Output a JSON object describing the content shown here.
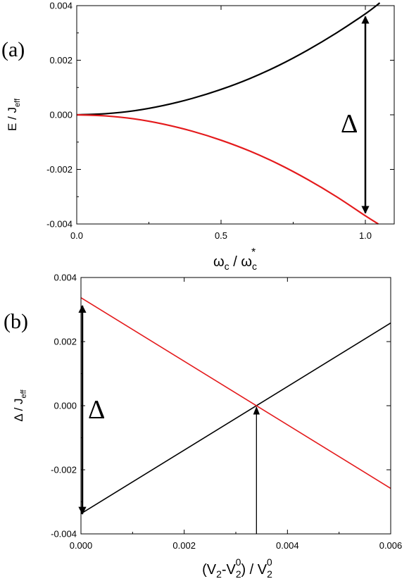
{
  "chart_data": [
    {
      "type": "line",
      "panel_label": "(a)",
      "xlabel": {
        "main": "ω",
        "sub1": "c",
        "mid": " / ω",
        "sub2": "c",
        "sup": "*"
      },
      "ylabel": {
        "main": "E / J",
        "sub": "eff"
      },
      "xlim": [
        0.0,
        1.1
      ],
      "ylim": [
        -0.004,
        0.004
      ],
      "xticks": [
        0.0,
        0.5,
        1.0
      ],
      "xtick_labels": [
        "0.0",
        "0.5",
        "1.0"
      ],
      "yticks": [
        -0.004,
        -0.002,
        0.0,
        0.002,
        0.004
      ],
      "ytick_labels": [
        "-0.004",
        "-0.002",
        "0.000",
        "0.002",
        "0.004"
      ],
      "series": [
        {
          "color": "#000000",
          "x": [
            0.0,
            0.1,
            0.2,
            0.3,
            0.4,
            0.5,
            0.6,
            0.7,
            0.8,
            0.9,
            1.0,
            1.05
          ],
          "y": [
            0.0,
            4e-05,
            0.00015,
            0.00034,
            0.0006,
            0.00093,
            0.00133,
            0.00181,
            0.00237,
            0.003,
            0.0037,
            0.0041
          ]
        },
        {
          "color": "#e41a1c",
          "x": [
            0.0,
            0.1,
            0.2,
            0.3,
            0.4,
            0.5,
            0.6,
            0.7,
            0.8,
            0.9,
            1.0,
            1.045
          ],
          "y": [
            0.0,
            -4e-05,
            -0.00015,
            -0.00034,
            -0.0006,
            -0.00093,
            -0.00133,
            -0.00181,
            -0.00237,
            -0.003,
            -0.0037,
            -0.004
          ]
        }
      ],
      "annotations": [
        {
          "type": "double-arrow",
          "x": 1.0,
          "y_from": 0.0036,
          "y_to": -0.0036,
          "label": "Δ"
        }
      ]
    },
    {
      "type": "line",
      "panel_label": "(b)",
      "xlabel": {
        "open": "(V",
        "sub1": "2",
        "dash": "-V",
        "sub2": "2",
        "sup2": "0",
        "close": ") / V",
        "sub3": "2",
        "sup3": "0"
      },
      "ylabel": {
        "main": "Δ / J",
        "sub": "eff"
      },
      "xlim": [
        0.0,
        0.006
      ],
      "ylim": [
        -0.004,
        0.004
      ],
      "xticks": [
        0.0,
        0.002,
        0.004,
        0.006
      ],
      "xtick_labels": [
        "0.000",
        "0.002",
        "0.004",
        "0.006"
      ],
      "yticks": [
        -0.004,
        -0.002,
        0.0,
        0.002,
        0.004
      ],
      "ytick_labels": [
        "-0.004",
        "-0.002",
        "0.000",
        "0.002",
        "0.004"
      ],
      "series": [
        {
          "color": "#000000",
          "x": [
            0.0,
            0.006
          ],
          "y": [
            -0.00337,
            0.00258
          ]
        },
        {
          "color": "#e41a1c",
          "x": [
            0.0,
            0.006
          ],
          "y": [
            0.00337,
            -0.00258
          ]
        }
      ],
      "annotations": [
        {
          "type": "double-arrow",
          "x": 0.0,
          "y_from": 0.00312,
          "y_to": -0.00338,
          "label": "Δ"
        },
        {
          "type": "arrow",
          "x": 0.0034,
          "y_from": -0.004,
          "y_to": 0.0
        }
      ]
    }
  ]
}
